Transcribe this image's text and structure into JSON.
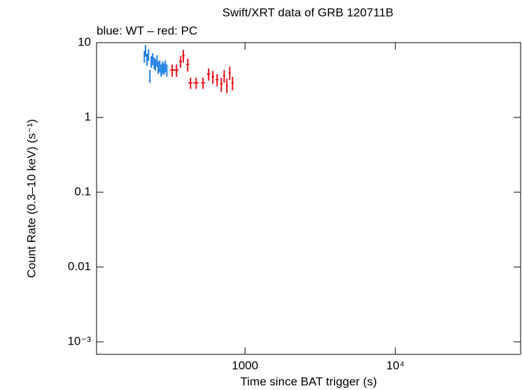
{
  "chart_data": {
    "type": "scatter",
    "title": "Swift/XRT data of GRB 120711B",
    "subtitle": "blue: WT – red: PC",
    "x_label": "Time since BAT trigger (s)",
    "y_label": "Count Rate (0.3–10 keV) (s⁻¹)",
    "x_log": true,
    "y_log": true,
    "xlim": [
      103,
      68000
    ],
    "ylim": [
      0.00068,
      10
    ],
    "xticks": [
      1000,
      {
        "value": 10000,
        "label": "10⁴"
      }
    ],
    "yticks": [
      {
        "value": 0.001,
        "label": "10⁻³"
      },
      0.01,
      0.1,
      1,
      10
    ],
    "series": [
      {
        "color": "#1f7fe6",
        "x": [
          214,
          218,
          223,
          228,
          233,
          238,
          243,
          249,
          254,
          260,
          265,
          271,
          277,
          283,
          289,
          295,
          302
        ],
        "xerr": [
          2,
          2,
          2,
          2,
          2,
          2,
          2,
          2,
          2,
          2,
          2,
          2,
          2,
          2,
          2,
          2,
          3
        ],
        "values": [
          6.6,
          7.9,
          6.0,
          6.9,
          3.6,
          5.6,
          6.1,
          5.4,
          5.1,
          5.8,
          4.7,
          4.9,
          4.3,
          4.7,
          4.5,
          4.9,
          4.3
        ],
        "yerr": [
          1.2,
          1.4,
          1.1,
          1.2,
          0.7,
          1.0,
          1.1,
          1.0,
          0.9,
          1.0,
          0.9,
          0.9,
          0.8,
          0.9,
          0.8,
          0.9,
          0.8
        ]
      },
      {
        "color": "#e6141e",
        "x": [
          328,
          350,
          373,
          389,
          416,
          434,
          473,
          526,
          573,
          611,
          652,
          696,
          727,
          757,
          791,
          826
        ],
        "xerr": [
          10,
          12,
          8,
          8,
          10,
          14,
          18,
          16,
          14,
          12,
          14,
          12,
          12,
          12,
          12,
          14
        ],
        "values": [
          4.3,
          4.3,
          5.6,
          6.7,
          5.1,
          2.9,
          2.9,
          2.9,
          3.8,
          3.5,
          3.2,
          2.8,
          3.6,
          2.7,
          3.96,
          2.9
        ],
        "yerr": [
          0.8,
          0.8,
          1.0,
          1.3,
          1.0,
          0.5,
          0.5,
          0.5,
          0.7,
          0.7,
          0.6,
          0.6,
          0.7,
          0.6,
          0.8,
          0.6
        ]
      }
    ]
  }
}
